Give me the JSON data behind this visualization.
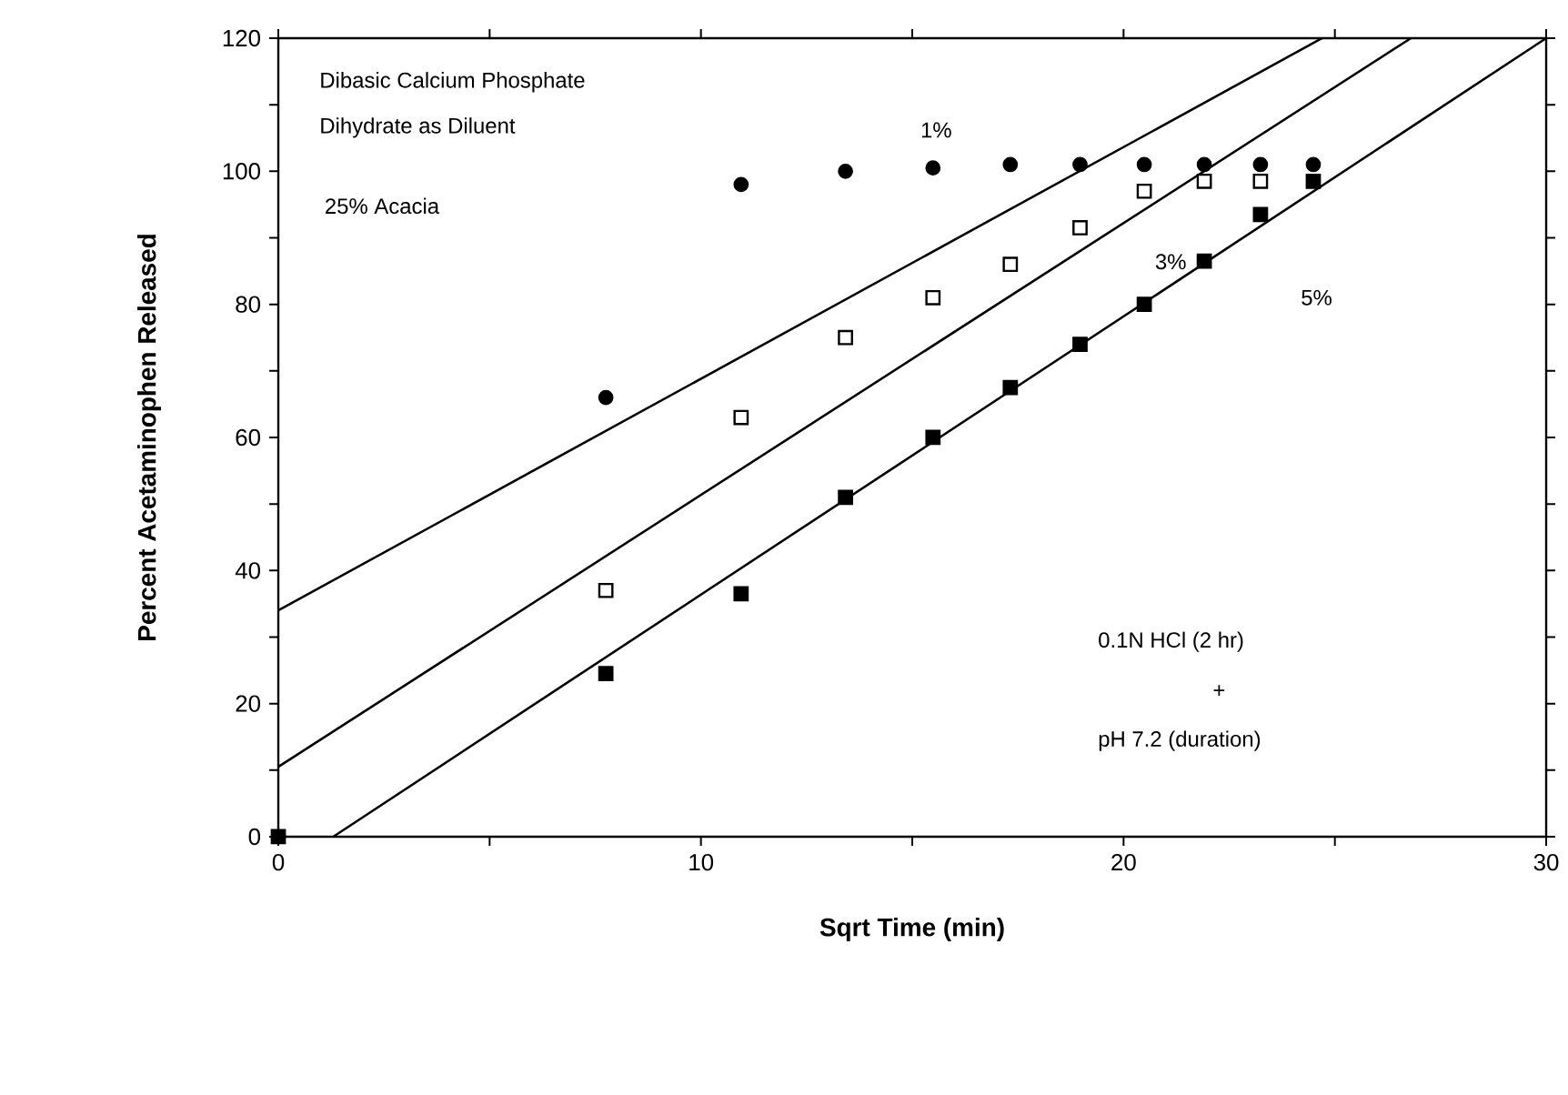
{
  "chart_data": {
    "type": "scatter",
    "xlabel": "Sqrt Time (min)",
    "ylabel": "Percent Acetaminophen Released",
    "x": [
      0,
      7.75,
      10.95,
      13.42,
      15.49,
      17.32,
      18.97,
      20.49,
      21.91,
      23.24,
      24.49
    ],
    "xlim": [
      0,
      30
    ],
    "ylim": [
      0,
      120
    ],
    "xticks": [
      0,
      {
        "value": 5,
        "label": null
      },
      10,
      {
        "value": 15,
        "label": null
      },
      20,
      {
        "value": 25,
        "label": null
      },
      30
    ],
    "yticks": [
      0,
      {
        "value": 10,
        "label": null
      },
      20,
      {
        "value": 30,
        "label": null
      },
      40,
      {
        "value": 50,
        "label": null
      },
      60,
      {
        "value": 70,
        "label": null
      },
      80,
      {
        "value": 90,
        "label": null
      },
      100,
      {
        "value": 110,
        "label": null
      },
      120
    ],
    "series": [
      {
        "marker": "circle",
        "color": "#000000",
        "values": [
          null,
          66,
          98,
          100,
          100.5,
          101,
          101,
          101,
          101,
          101,
          101
        ]
      },
      {
        "marker": "square",
        "color": "#ffffff",
        "values": [
          null,
          37,
          63,
          75,
          81,
          86,
          91.5,
          97,
          98.5,
          98.5,
          null
        ]
      },
      {
        "marker": "square",
        "color": "#000000",
        "values": [
          0,
          24.5,
          36.5,
          51,
          60,
          67.5,
          74,
          80,
          86.5,
          93.5,
          98.5
        ]
      },
      {
        "type": "line",
        "marker": "none",
        "color": "#000000",
        "x": [
          0,
          24.7
        ],
        "values": [
          34,
          120
        ]
      },
      {
        "type": "line",
        "marker": "none",
        "color": "#000000",
        "x": [
          0,
          26.8
        ],
        "values": [
          10.5,
          120
        ]
      },
      {
        "type": "line",
        "marker": "none",
        "color": "#000000",
        "x": [
          1.3,
          30
        ],
        "values": [
          0,
          120
        ]
      }
    ],
    "annotations": [
      "Dibasic Calcium Phosphate",
      "Dihydrate as Diluent",
      "25% Acacia",
      "1%",
      "3%",
      "5%",
      "0.1N HCl (2 hr)",
      "+",
      "pH 7.2 (duration)"
    ]
  }
}
